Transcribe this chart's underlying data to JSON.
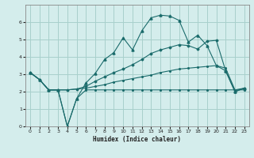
{
  "xlabel": "Humidex (Indice chaleur)",
  "bg_color": "#d4edec",
  "grid_color": "#a8d0cc",
  "line_color": "#1a6b6b",
  "x_values": [
    0,
    1,
    2,
    3,
    4,
    5,
    6,
    7,
    8,
    9,
    10,
    11,
    12,
    13,
    14,
    15,
    16,
    17,
    18,
    19,
    20,
    21,
    22,
    23
  ],
  "series1": [
    3.1,
    2.7,
    2.1,
    2.1,
    0.0,
    1.6,
    2.1,
    2.1,
    2.1,
    2.1,
    2.1,
    2.1,
    2.1,
    2.1,
    2.1,
    2.1,
    2.1,
    2.1,
    2.1,
    2.1,
    2.1,
    2.1,
    2.1,
    2.1
  ],
  "series2": [
    3.1,
    2.7,
    2.1,
    2.1,
    2.1,
    2.15,
    2.2,
    2.3,
    2.4,
    2.55,
    2.65,
    2.75,
    2.85,
    2.95,
    3.1,
    3.2,
    3.3,
    3.35,
    3.4,
    3.45,
    3.5,
    3.35,
    2.1,
    2.2
  ],
  "series3": [
    3.1,
    2.7,
    2.1,
    2.1,
    2.1,
    2.15,
    2.3,
    2.6,
    2.85,
    3.1,
    3.3,
    3.55,
    3.85,
    4.2,
    4.4,
    4.55,
    4.7,
    4.65,
    4.45,
    4.9,
    4.95,
    3.2,
    2.0,
    2.2
  ],
  "series4": [
    3.1,
    2.7,
    2.1,
    2.1,
    0.0,
    1.6,
    2.5,
    3.05,
    3.85,
    4.25,
    5.1,
    4.4,
    5.5,
    6.25,
    6.4,
    6.35,
    6.1,
    4.85,
    5.25,
    4.65,
    3.5,
    3.2,
    2.0,
    2.2
  ],
  "xlim": [
    -0.5,
    23.5
  ],
  "ylim": [
    0,
    7
  ],
  "yticks": [
    0,
    1,
    2,
    3,
    4,
    5,
    6
  ],
  "xticks": [
    0,
    1,
    2,
    3,
    4,
    5,
    6,
    7,
    8,
    9,
    10,
    11,
    12,
    13,
    14,
    15,
    16,
    17,
    18,
    19,
    20,
    21,
    22,
    23
  ]
}
